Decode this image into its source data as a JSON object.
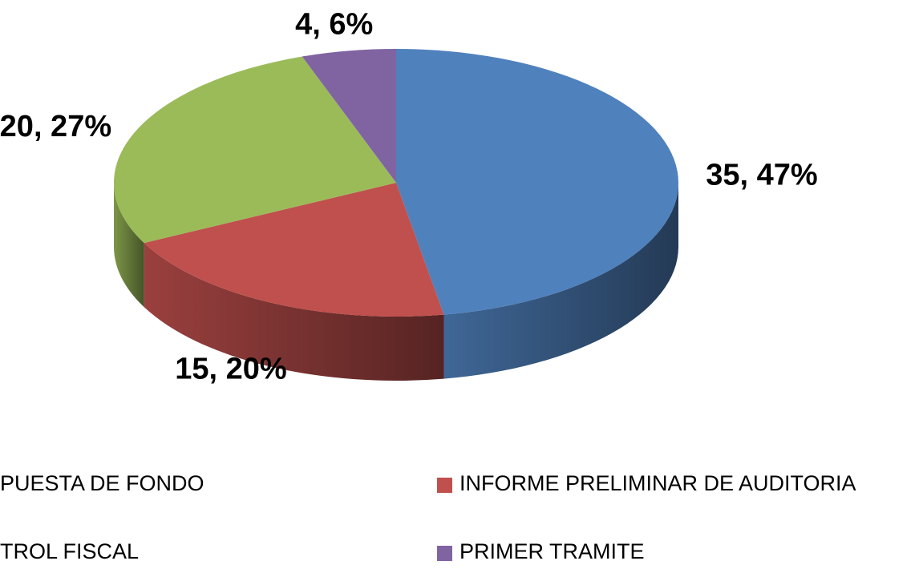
{
  "chart_data": {
    "type": "pie",
    "three_d": true,
    "categories": [
      "PUESTA DE FONDO",
      "INFORME PRELIMINAR DE AUDITORIA",
      "TROL FISCAL",
      "PRIMER TRAMITE"
    ],
    "slice_order": [
      0,
      1,
      2,
      3
    ],
    "values": [
      35,
      15,
      20,
      4
    ],
    "value_labels": [
      "35, 47%",
      "15, 20%",
      "20, 27%",
      "4, 6%"
    ],
    "colors": [
      "#4f81bd",
      "#c0504d",
      "#9bbb59",
      "#8064a2"
    ],
    "legend": "bottom"
  }
}
